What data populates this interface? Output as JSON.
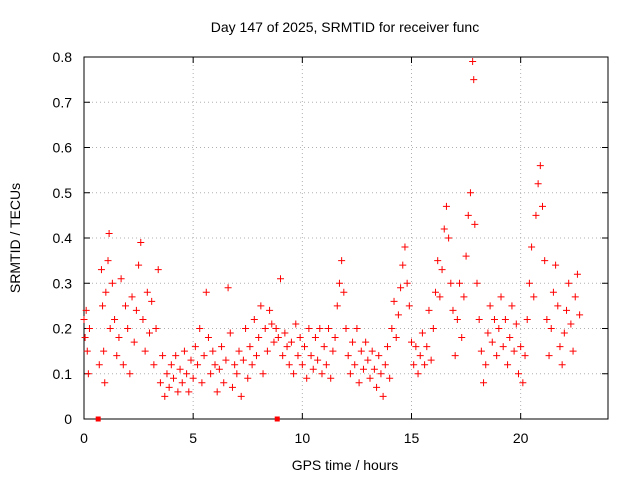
{
  "chart_data": {
    "type": "scatter",
    "title": "Day 147 of 2025, SRMTID for receiver func",
    "xlabel": "GPS time / hours",
    "ylabel": "SRMTID / TECUs",
    "xlim": [
      0,
      24
    ],
    "ylim": [
      0,
      0.8
    ],
    "x_ticks": [
      "0",
      "5",
      "10",
      "15",
      "20"
    ],
    "x_tick_values": [
      0,
      5,
      10,
      15,
      20
    ],
    "y_ticks": [
      "0",
      "0.1",
      "0.2",
      "0.3",
      "0.4",
      "0.5",
      "0.6",
      "0.7",
      "0.8"
    ],
    "y_tick_values": [
      0,
      0.1,
      0.2,
      0.3,
      0.4,
      0.5,
      0.6,
      0.7,
      0.8
    ],
    "grid": true,
    "marker": "+",
    "color": "#ff0000",
    "zero_markers_x": [
      0.65,
      8.85
    ],
    "series": [
      {
        "name": "SRMTID",
        "points": [
          [
            0.0,
            0.22
          ],
          [
            0.05,
            0.18
          ],
          [
            0.1,
            0.24
          ],
          [
            0.15,
            0.15
          ],
          [
            0.2,
            0.1
          ],
          [
            0.25,
            0.2
          ],
          [
            0.7,
            0.12
          ],
          [
            0.8,
            0.33
          ],
          [
            0.85,
            0.25
          ],
          [
            0.9,
            0.15
          ],
          [
            0.95,
            0.08
          ],
          [
            1.0,
            0.28
          ],
          [
            1.1,
            0.35
          ],
          [
            1.15,
            0.41
          ],
          [
            1.2,
            0.2
          ],
          [
            1.3,
            0.3
          ],
          [
            1.4,
            0.22
          ],
          [
            1.5,
            0.14
          ],
          [
            1.6,
            0.18
          ],
          [
            1.7,
            0.31
          ],
          [
            1.8,
            0.12
          ],
          [
            1.9,
            0.25
          ],
          [
            2.0,
            0.2
          ],
          [
            2.1,
            0.1
          ],
          [
            2.2,
            0.27
          ],
          [
            2.3,
            0.17
          ],
          [
            2.4,
            0.24
          ],
          [
            2.5,
            0.34
          ],
          [
            2.6,
            0.39
          ],
          [
            2.7,
            0.22
          ],
          [
            2.8,
            0.15
          ],
          [
            2.9,
            0.28
          ],
          [
            3.0,
            0.19
          ],
          [
            3.1,
            0.26
          ],
          [
            3.2,
            0.12
          ],
          [
            3.3,
            0.2
          ],
          [
            3.4,
            0.33
          ],
          [
            3.5,
            0.08
          ],
          [
            3.6,
            0.14
          ],
          [
            3.7,
            0.05
          ],
          [
            3.8,
            0.1
          ],
          [
            3.9,
            0.07
          ],
          [
            4.0,
            0.12
          ],
          [
            4.1,
            0.09
          ],
          [
            4.2,
            0.14
          ],
          [
            4.3,
            0.06
          ],
          [
            4.4,
            0.11
          ],
          [
            4.5,
            0.08
          ],
          [
            4.6,
            0.15
          ],
          [
            4.7,
            0.1
          ],
          [
            4.8,
            0.06
          ],
          [
            4.9,
            0.13
          ],
          [
            5.0,
            0.09
          ],
          [
            5.1,
            0.16
          ],
          [
            5.2,
            0.12
          ],
          [
            5.3,
            0.2
          ],
          [
            5.4,
            0.08
          ],
          [
            5.5,
            0.14
          ],
          [
            5.6,
            0.28
          ],
          [
            5.7,
            0.18
          ],
          [
            5.8,
            0.1
          ],
          [
            5.9,
            0.15
          ],
          [
            6.0,
            0.12
          ],
          [
            6.1,
            0.06
          ],
          [
            6.2,
            0.11
          ],
          [
            6.3,
            0.16
          ],
          [
            6.4,
            0.08
          ],
          [
            6.5,
            0.13
          ],
          [
            6.6,
            0.29
          ],
          [
            6.7,
            0.19
          ],
          [
            6.8,
            0.07
          ],
          [
            6.9,
            0.12
          ],
          [
            7.0,
            0.1
          ],
          [
            7.1,
            0.15
          ],
          [
            7.2,
            0.05
          ],
          [
            7.3,
            0.13
          ],
          [
            7.4,
            0.2
          ],
          [
            7.5,
            0.09
          ],
          [
            7.6,
            0.16
          ],
          [
            7.7,
            0.12
          ],
          [
            7.8,
            0.22
          ],
          [
            7.9,
            0.14
          ],
          [
            8.0,
            0.18
          ],
          [
            8.1,
            0.25
          ],
          [
            8.2,
            0.1
          ],
          [
            8.3,
            0.2
          ],
          [
            8.4,
            0.15
          ],
          [
            8.5,
            0.24
          ],
          [
            8.6,
            0.21
          ],
          [
            8.7,
            0.17
          ],
          [
            8.8,
            0.2
          ],
          [
            8.9,
            0.18
          ],
          [
            9.0,
            0.31
          ],
          [
            9.1,
            0.14
          ],
          [
            9.2,
            0.19
          ],
          [
            9.3,
            0.16
          ],
          [
            9.4,
            0.12
          ],
          [
            9.5,
            0.17
          ],
          [
            9.6,
            0.1
          ],
          [
            9.7,
            0.21
          ],
          [
            9.8,
            0.14
          ],
          [
            9.9,
            0.18
          ],
          [
            10.0,
            0.12
          ],
          [
            10.1,
            0.16
          ],
          [
            10.2,
            0.09
          ],
          [
            10.3,
            0.2
          ],
          [
            10.4,
            0.14
          ],
          [
            10.5,
            0.11
          ],
          [
            10.6,
            0.18
          ],
          [
            10.7,
            0.13
          ],
          [
            10.8,
            0.2
          ],
          [
            10.9,
            0.1
          ],
          [
            11.0,
            0.16
          ],
          [
            11.1,
            0.12
          ],
          [
            11.2,
            0.2
          ],
          [
            11.3,
            0.09
          ],
          [
            11.4,
            0.15
          ],
          [
            11.5,
            0.18
          ],
          [
            11.6,
            0.25
          ],
          [
            11.7,
            0.3
          ],
          [
            11.8,
            0.35
          ],
          [
            11.9,
            0.28
          ],
          [
            12.0,
            0.2
          ],
          [
            12.1,
            0.14
          ],
          [
            12.2,
            0.1
          ],
          [
            12.3,
            0.17
          ],
          [
            12.4,
            0.12
          ],
          [
            12.5,
            0.2
          ],
          [
            12.6,
            0.08
          ],
          [
            12.7,
            0.15
          ],
          [
            12.8,
            0.11
          ],
          [
            12.9,
            0.17
          ],
          [
            13.0,
            0.13
          ],
          [
            13.1,
            0.09
          ],
          [
            13.2,
            0.15
          ],
          [
            13.3,
            0.11
          ],
          [
            13.4,
            0.07
          ],
          [
            13.5,
            0.14
          ],
          [
            13.6,
            0.1
          ],
          [
            13.7,
            0.05
          ],
          [
            13.8,
            0.12
          ],
          [
            13.9,
            0.16
          ],
          [
            14.0,
            0.09
          ],
          [
            14.1,
            0.2
          ],
          [
            14.2,
            0.26
          ],
          [
            14.3,
            0.18
          ],
          [
            14.4,
            0.23
          ],
          [
            14.5,
            0.29
          ],
          [
            14.6,
            0.34
          ],
          [
            14.7,
            0.38
          ],
          [
            14.8,
            0.3
          ],
          [
            14.9,
            0.25
          ],
          [
            15.0,
            0.17
          ],
          [
            15.1,
            0.12
          ],
          [
            15.2,
            0.16
          ],
          [
            15.3,
            0.1
          ],
          [
            15.4,
            0.14
          ],
          [
            15.5,
            0.19
          ],
          [
            15.6,
            0.12
          ],
          [
            15.7,
            0.16
          ],
          [
            15.8,
            0.24
          ],
          [
            15.9,
            0.13
          ],
          [
            16.0,
            0.2
          ],
          [
            16.1,
            0.28
          ],
          [
            16.2,
            0.35
          ],
          [
            16.3,
            0.27
          ],
          [
            16.4,
            0.33
          ],
          [
            16.5,
            0.42
          ],
          [
            16.6,
            0.47
          ],
          [
            16.7,
            0.4
          ],
          [
            16.8,
            0.3
          ],
          [
            16.9,
            0.24
          ],
          [
            17.0,
            0.14
          ],
          [
            17.1,
            0.22
          ],
          [
            17.2,
            0.3
          ],
          [
            17.3,
            0.18
          ],
          [
            17.4,
            0.27
          ],
          [
            17.5,
            0.36
          ],
          [
            17.6,
            0.45
          ],
          [
            17.7,
            0.5
          ],
          [
            17.8,
            0.79
          ],
          [
            17.85,
            0.75
          ],
          [
            17.9,
            0.43
          ],
          [
            18.0,
            0.3
          ],
          [
            18.1,
            0.22
          ],
          [
            18.2,
            0.15
          ],
          [
            18.3,
            0.08
          ],
          [
            18.4,
            0.12
          ],
          [
            18.5,
            0.19
          ],
          [
            18.6,
            0.25
          ],
          [
            18.7,
            0.17
          ],
          [
            18.8,
            0.22
          ],
          [
            18.9,
            0.14
          ],
          [
            19.0,
            0.2
          ],
          [
            19.1,
            0.27
          ],
          [
            19.2,
            0.16
          ],
          [
            19.3,
            0.22
          ],
          [
            19.4,
            0.12
          ],
          [
            19.5,
            0.18
          ],
          [
            19.6,
            0.25
          ],
          [
            19.7,
            0.15
          ],
          [
            19.8,
            0.21
          ],
          [
            19.9,
            0.1
          ],
          [
            20.0,
            0.16
          ],
          [
            20.1,
            0.08
          ],
          [
            20.2,
            0.14
          ],
          [
            20.3,
            0.22
          ],
          [
            20.4,
            0.3
          ],
          [
            20.5,
            0.38
          ],
          [
            20.6,
            0.27
          ],
          [
            20.7,
            0.45
          ],
          [
            20.8,
            0.52
          ],
          [
            20.9,
            0.56
          ],
          [
            21.0,
            0.47
          ],
          [
            21.1,
            0.35
          ],
          [
            21.2,
            0.22
          ],
          [
            21.3,
            0.14
          ],
          [
            21.4,
            0.2
          ],
          [
            21.5,
            0.28
          ],
          [
            21.6,
            0.34
          ],
          [
            21.7,
            0.25
          ],
          [
            21.8,
            0.16
          ],
          [
            21.9,
            0.12
          ],
          [
            22.0,
            0.19
          ],
          [
            22.1,
            0.24
          ],
          [
            22.2,
            0.3
          ],
          [
            22.3,
            0.21
          ],
          [
            22.4,
            0.15
          ],
          [
            22.5,
            0.27
          ],
          [
            22.6,
            0.32
          ],
          [
            22.7,
            0.23
          ]
        ]
      }
    ]
  }
}
